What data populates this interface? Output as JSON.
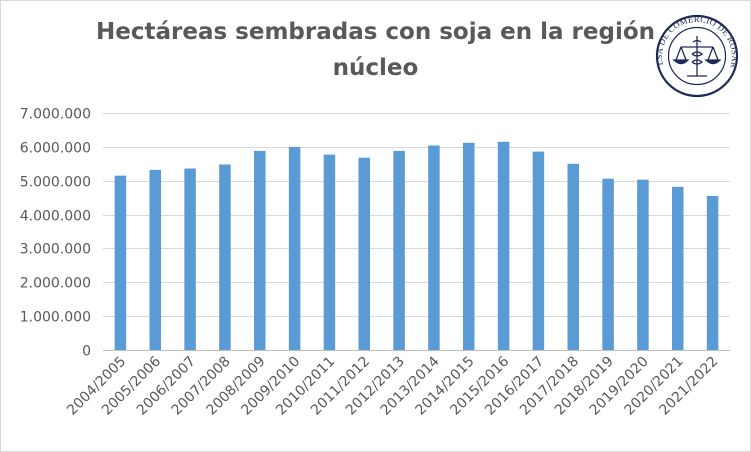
{
  "chart_data": {
    "type": "bar",
    "title_lines": [
      "Hectáreas sembradas con soja en la región",
      "núcleo"
    ],
    "categories": [
      "2004/2005",
      "2005/2006",
      "2006/2007",
      "2007/2008",
      "2008/2009",
      "2009/2010",
      "2010/2011",
      "2011/2012",
      "2012/2013",
      "2013/2014",
      "2014/2015",
      "2015/2016",
      "2016/2017",
      "2017/2018",
      "2018/2019",
      "2019/2020",
      "2020/2021",
      "2021/2022"
    ],
    "values": [
      5150000,
      5320000,
      5360000,
      5480000,
      5880000,
      6000000,
      5770000,
      5680000,
      5880000,
      6040000,
      6120000,
      6150000,
      5860000,
      5500000,
      5060000,
      5030000,
      4820000,
      4550000
    ],
    "y_ticks": [
      0,
      1000000,
      2000000,
      3000000,
      4000000,
      5000000,
      6000000,
      7000000
    ],
    "y_tick_labels": [
      "0",
      "1.000.000",
      "2.000.000",
      "3.000.000",
      "4.000.000",
      "5.000.000",
      "6.000.000",
      "7.000.000"
    ],
    "ylim": [
      0,
      7000000
    ],
    "xlabel": "",
    "ylabel": "",
    "grid": true,
    "legend": "none",
    "bar_color": "#5b9bd5"
  },
  "logo": {
    "text": "BOLSA DE COMERCIO DE ROSARIO",
    "icon": "scales-caduceus-icon",
    "color": "#1f2a5a"
  }
}
